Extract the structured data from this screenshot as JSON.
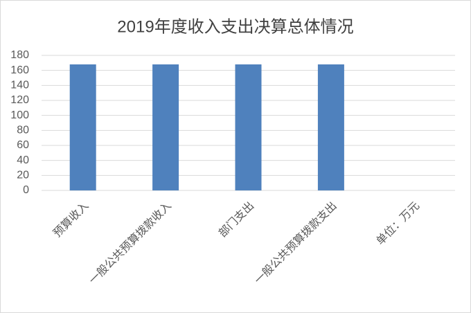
{
  "chart_data": {
    "type": "bar",
    "title": "2019年度收入支出决算总体情况",
    "categories": [
      "预算收入",
      "一般公共预算拨款收入",
      "部门支出",
      "一般公共预算拨款支出",
      "单位：万元"
    ],
    "values": [
      168,
      168,
      168,
      168,
      null
    ],
    "color": "#4f81bd",
    "ylim": [
      0,
      180
    ],
    "yticks": [
      0,
      20,
      40,
      60,
      80,
      100,
      120,
      140,
      160,
      180
    ],
    "grid": true
  }
}
